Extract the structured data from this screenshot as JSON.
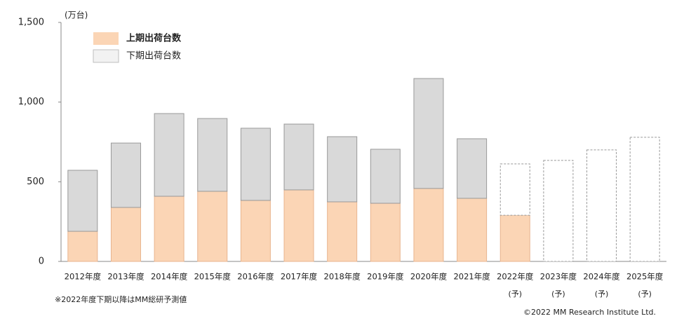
{
  "chart_data": {
    "type": "stacked_bar",
    "unit_label": "(万台)",
    "categories": [
      "2012年度",
      "2013年度",
      "2014年度",
      "2015年度",
      "2016年度",
      "2017年度",
      "2018年度",
      "2019年度",
      "2020年度",
      "2021年度",
      "2022年度",
      "2023年度",
      "2024年度",
      "2025年度"
    ],
    "category_notes": [
      null,
      null,
      null,
      null,
      null,
      null,
      null,
      null,
      null,
      null,
      "(予)",
      "(予)",
      "(予)",
      "(予)"
    ],
    "series": [
      {
        "name": "上期出荷台数",
        "color": "#fbd5b5",
        "values": [
          189,
          339,
          409,
          440,
          383,
          449,
          374,
          365,
          458,
          396,
          290,
          null,
          null,
          null
        ]
      },
      {
        "name": "下期出荷台数",
        "color": "#d9d9d9",
        "values": [
          383,
          404,
          519,
          457,
          453,
          413,
          409,
          339,
          690,
          374,
          322,
          634,
          700,
          779
        ]
      }
    ],
    "ylim": [
      0,
      1500
    ],
    "yticks": [
      0,
      500,
      {
        "value": 1000,
        "label": "1,000"
      },
      {
        "value": 1500,
        "label": "1,500"
      }
    ],
    "grid": false,
    "legend_position": "top-left",
    "footnote": "※2022年度下期以降はMM総研予測値",
    "copyright": "©2022  MM Research Institute Ltd."
  }
}
